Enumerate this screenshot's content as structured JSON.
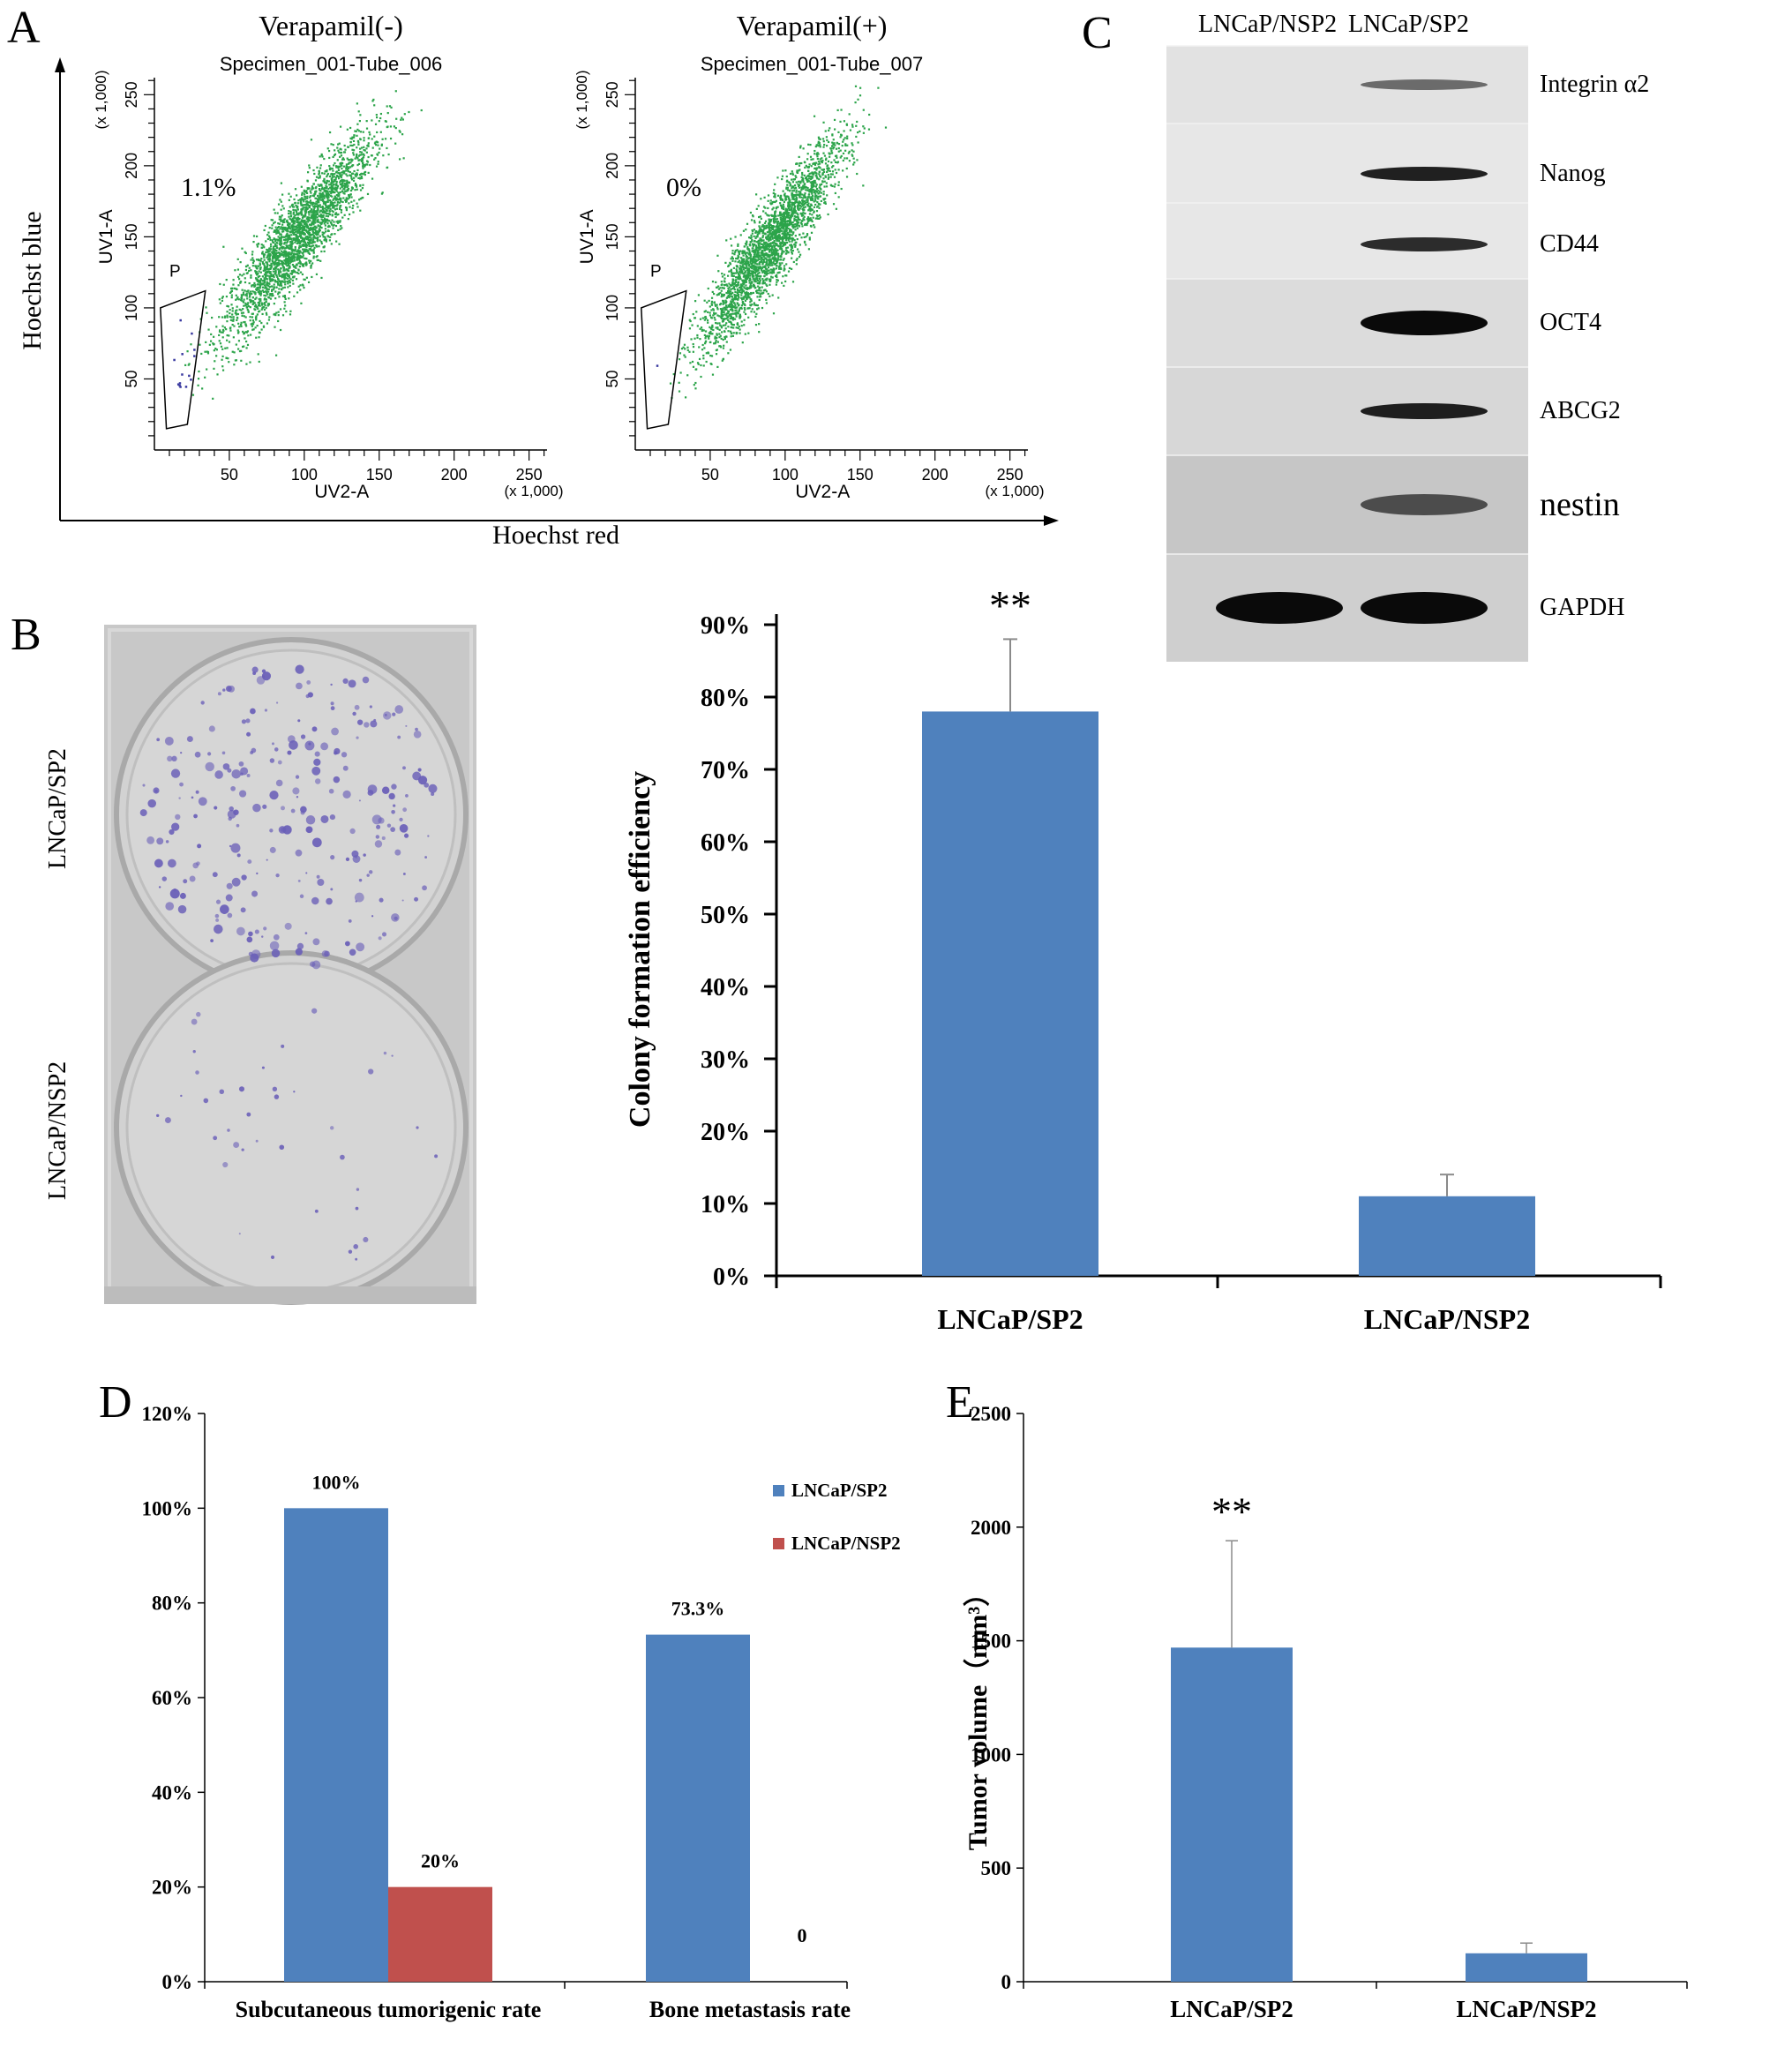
{
  "panels": {
    "a": "A",
    "b": "B",
    "c": "C",
    "d": "D",
    "e": "E"
  },
  "flow": {
    "y_title": "Hoechst blue",
    "x_title": "Hoechst red",
    "plots": [
      {
        "title": "Verapamil(-)",
        "subtitle": "Specimen_001-Tube_006",
        "gate_label": "P",
        "percent": "1.1%",
        "y_axis_label": "UV1-A",
        "x_axis_label": "UV2-A",
        "scale_note": "(x 1,000)"
      },
      {
        "title": "Verapamil(+)",
        "subtitle": "Specimen_001-Tube_007",
        "gate_label": "P",
        "percent": "0%",
        "y_axis_label": "UV1-A",
        "x_axis_label": "UV2-A",
        "scale_note": "(x 1,000)"
      }
    ],
    "x_ticks": [
      "50",
      "100",
      "150",
      "200",
      "250"
    ],
    "y_ticks": [
      "50",
      "100",
      "150",
      "200",
      "250"
    ],
    "point_color": "#2ca44a",
    "gate_point_color": "#3a3aa0"
  },
  "plate": {
    "labels": [
      "LNCaP/SP2",
      "LNCaP/NSP2"
    ],
    "stain_color": "#6a5fb8"
  },
  "blot": {
    "columns": [
      "LNCaP/NSP2",
      "LNCaP/SP2"
    ],
    "bands": [
      "Integrin α2",
      "Nanog",
      "CD44",
      "OCT4",
      "ABCG2",
      "nestin",
      "GAPDH"
    ]
  },
  "chart_data": [
    {
      "id": "B",
      "type": "bar",
      "categories": [
        "LNCaP/SP2",
        "LNCaP/NSP2"
      ],
      "values": [
        78,
        11
      ],
      "errors": [
        10,
        3
      ],
      "ylabel": "Colony formation efficiency",
      "ylim": [
        0,
        90
      ],
      "yticks": [
        "0%",
        "10%",
        "20%",
        "30%",
        "40%",
        "50%",
        "60%",
        "70%",
        "80%",
        "90%"
      ],
      "significance": "**",
      "color": "#4f81bd"
    },
    {
      "id": "C",
      "type": "bar",
      "categories": [
        "Subcutaneous tumorigenic rate",
        "Bone metastasis rate"
      ],
      "series": [
        {
          "name": "LNCaP/SP2",
          "values": [
            100,
            73.3
          ],
          "color": "#4f81bd"
        },
        {
          "name": "LNCaP/NSP2",
          "values": [
            20,
            0
          ],
          "color": "#c0504d"
        }
      ],
      "data_labels": [
        [
          "100%",
          "73.3%"
        ],
        [
          "20%",
          "0"
        ]
      ],
      "ylim": [
        0,
        120
      ],
      "yticks": [
        "0%",
        "20%",
        "40%",
        "60%",
        "80%",
        "100%",
        "120%"
      ],
      "legend": "right"
    },
    {
      "id": "E",
      "type": "bar",
      "categories": [
        "LNCaP/SP2",
        "LNCaP/NSP2"
      ],
      "values": [
        1470,
        125
      ],
      "errors": [
        470,
        45
      ],
      "ylabel": "Tumor volume（mm³）",
      "ylim": [
        0,
        2500
      ],
      "yticks": [
        "0",
        "500",
        "1000",
        "1500",
        "2000",
        "2500"
      ],
      "significance": "**",
      "color": "#4f81bd"
    }
  ]
}
